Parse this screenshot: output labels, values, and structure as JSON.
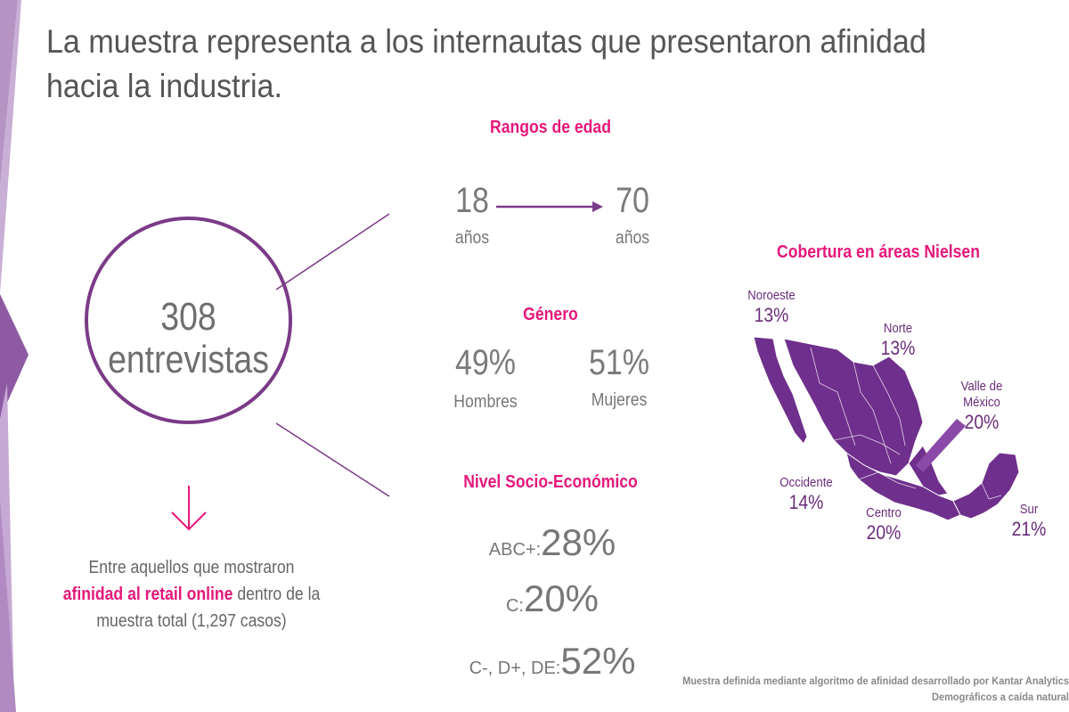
{
  "title": "La muestra representa a los internautas que presentaron afinidad hacia la industria.",
  "colors": {
    "accent": "#e6177a",
    "purple": "#7b3a87",
    "band": "#b08ac0"
  },
  "sample": {
    "count": "308",
    "label": "entrevistas",
    "note_before": "Entre aquellos que mostraron",
    "note_highlight": "afinidad al retail online",
    "note_after": "dentro de la muestra total (1,297 casos)"
  },
  "age": {
    "heading": "Rangos de edad",
    "from": "18",
    "to": "70",
    "unit_from": "años",
    "unit_to": "años"
  },
  "gender": {
    "heading": "Género",
    "men_value": "49%",
    "men_label": "Hombres",
    "women_value": "51%",
    "women_label": "Mujeres"
  },
  "nse": {
    "heading": "Nivel Socio-Económico",
    "rows": [
      {
        "label": "ABC+:",
        "value": "28%"
      },
      {
        "label": "C:",
        "value": "20%"
      },
      {
        "label": "C-, D+, DE:",
        "value": "52%"
      }
    ]
  },
  "coverage": {
    "heading": "Cobertura en áreas Nielsen",
    "regions": [
      {
        "name": "Noroeste",
        "value": "13%"
      },
      {
        "name": "Norte",
        "value": "13%"
      },
      {
        "name": "Valle de México",
        "value": "20%"
      },
      {
        "name": "Occidente",
        "value": "14%"
      },
      {
        "name": "Centro",
        "value": "20%"
      },
      {
        "name": "Sur",
        "value": "21%"
      }
    ]
  },
  "footnote": {
    "line1": "Muestra definida mediante algoritmo de afinidad desarrollado por Kantar Analytics",
    "line2": "Demográficos a caída natural"
  }
}
